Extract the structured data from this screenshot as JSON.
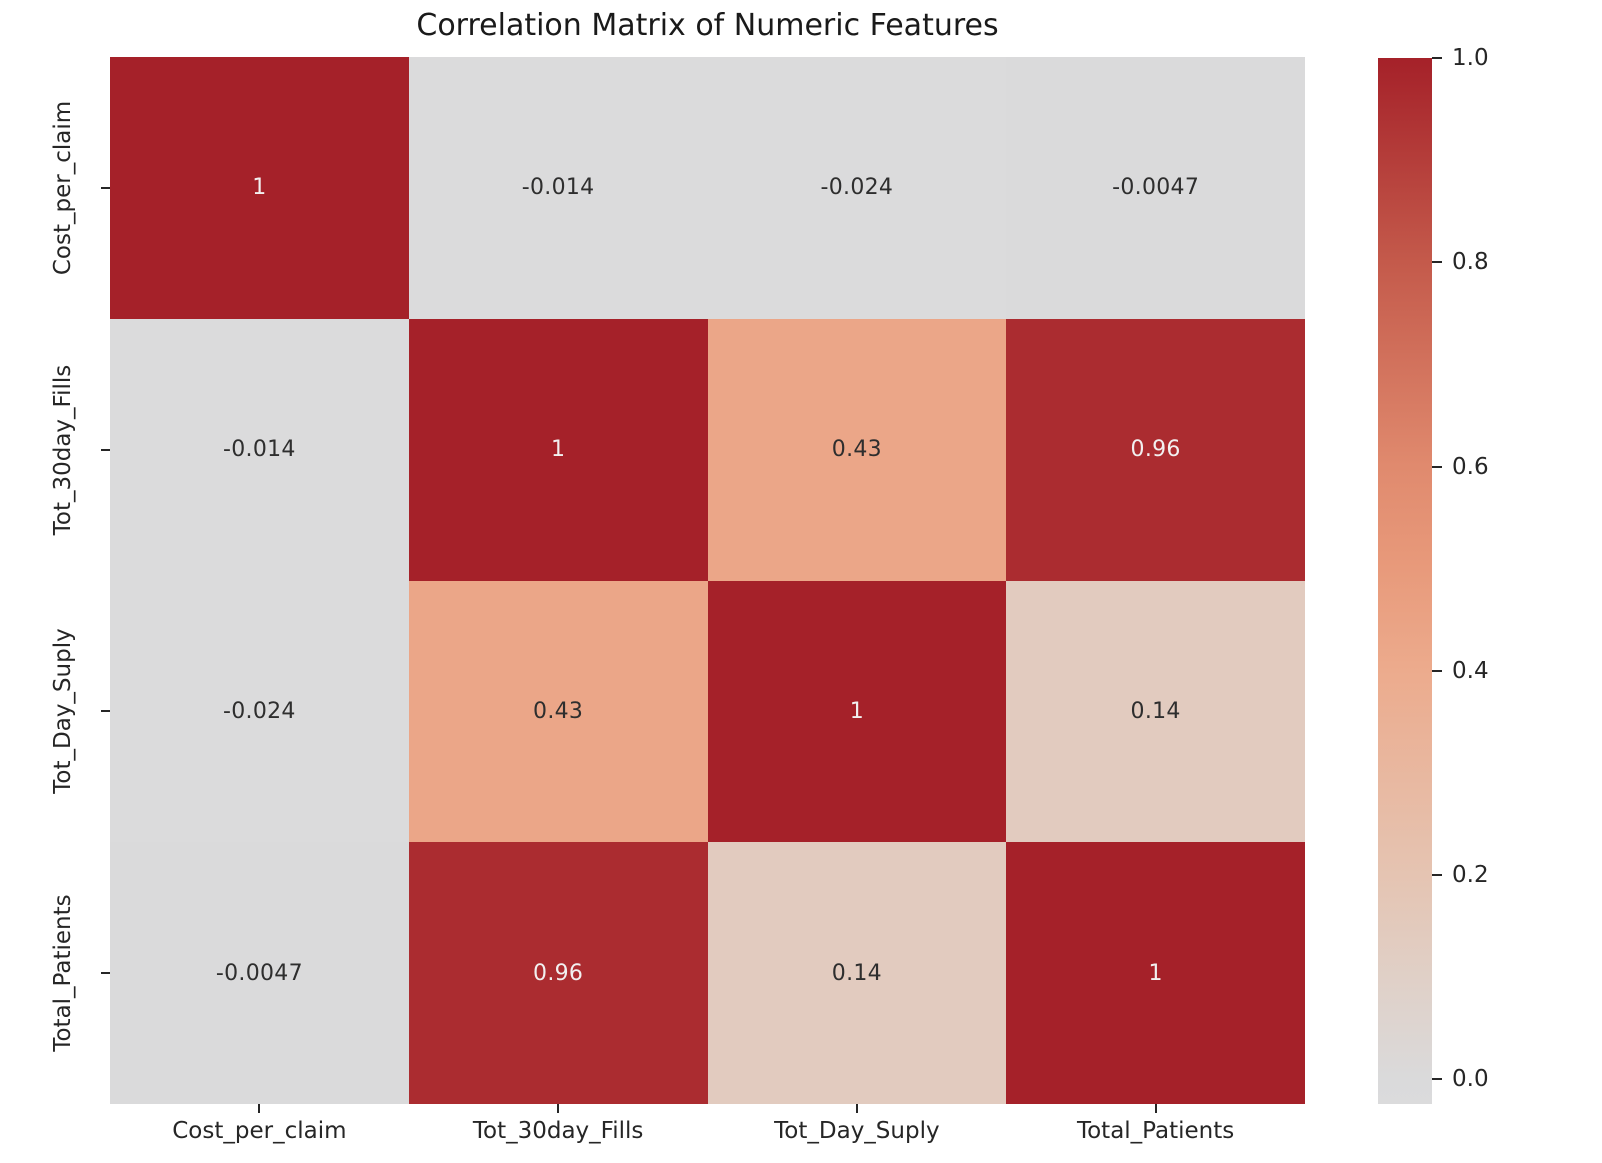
{
  "title": "Correlation Matrix of Numeric Features",
  "chart_data": {
    "type": "heatmap",
    "categories": [
      "Cost_per_claim",
      "Tot_30day_Fills",
      "Tot_Day_Suply",
      "Total_Patients"
    ],
    "matrix": [
      [
        1,
        -0.014,
        -0.024,
        -0.0047
      ],
      [
        -0.014,
        1,
        0.43,
        0.96
      ],
      [
        -0.024,
        0.43,
        1,
        0.14
      ],
      [
        -0.0047,
        0.96,
        0.14,
        1
      ]
    ],
    "cell_labels": [
      [
        "1",
        "-0.014",
        "-0.024",
        "-0.0047"
      ],
      [
        "-0.014",
        "1",
        "0.43",
        "0.96"
      ],
      [
        "-0.024",
        "0.43",
        "1",
        "0.14"
      ],
      [
        "-0.0047",
        "0.96",
        "0.14",
        "1"
      ]
    ],
    "colorbar": {
      "vmin": -0.024,
      "vmax": 1.0,
      "tick_values": [
        1.0,
        0.8,
        0.6,
        0.4,
        0.2,
        0.0
      ],
      "tick_labels": [
        "1.0",
        "0.8",
        "0.6",
        "0.4",
        "0.2",
        "0.0"
      ]
    },
    "colormap_stops": [
      {
        "v": -0.024,
        "c": "#dbdbdc"
      },
      {
        "v": 0.0,
        "c": "#dadadb"
      },
      {
        "v": 0.1,
        "c": "#e0d0c7"
      },
      {
        "v": 0.2,
        "c": "#e5c4b2"
      },
      {
        "v": 0.4,
        "c": "#ecab8d"
      },
      {
        "v": 0.5,
        "c": "#e89a7b"
      },
      {
        "v": 0.6,
        "c": "#e08a6e"
      },
      {
        "v": 0.8,
        "c": "#c45a4b"
      },
      {
        "v": 1.0,
        "c": "#a52129"
      }
    ],
    "annot_color_dark": "#2e2e2e",
    "annot_color_light": "#f2f0f0",
    "light_text_threshold": 0.7,
    "axis_color": "#262626"
  }
}
